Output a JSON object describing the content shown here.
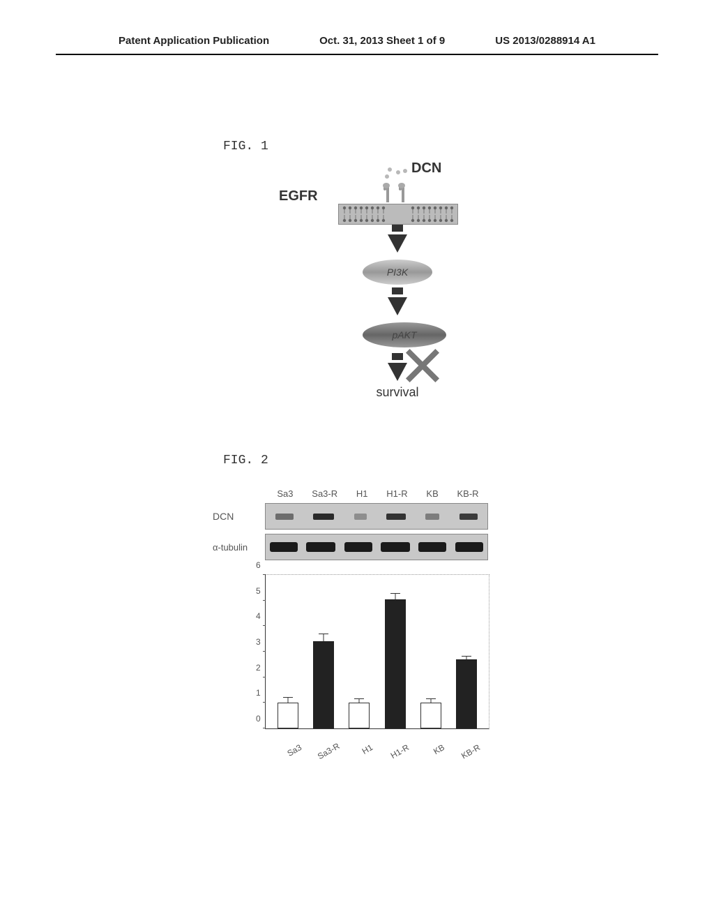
{
  "header": {
    "left": "Patent Application Publication",
    "center": "Oct. 31, 2013  Sheet 1 of 9",
    "right": "US 2013/0288914 A1"
  },
  "fig1": {
    "label": "FIG. 1",
    "dcn": "DCN",
    "egfr": "EGFR",
    "pi3k": "PI3K",
    "pakt": "pAKT",
    "survival": "survival"
  },
  "fig2": {
    "label": "FIG. 2",
    "wb_labels": {
      "dcn": "DCN",
      "tubulin": "α-tubulin"
    },
    "lanes": [
      "Sa3",
      "Sa3-R",
      "H1",
      "H1-R",
      "KB",
      "KB-R"
    ],
    "dcn_band_widths": [
      26,
      30,
      18,
      28,
      20,
      26
    ],
    "dcn_band_opacity": [
      0.55,
      0.95,
      0.35,
      0.9,
      0.45,
      0.85
    ],
    "tub_band_widths": [
      40,
      42,
      40,
      42,
      40,
      40
    ],
    "chart": {
      "ymax": 6,
      "yticks": [
        0,
        1,
        2,
        3,
        4,
        5,
        6
      ],
      "categories": [
        "Sa3",
        "Sa3-R",
        "H1",
        "H1-R",
        "KB",
        "KB-R"
      ],
      "values": [
        1.0,
        3.4,
        1.0,
        5.05,
        1.0,
        2.7
      ],
      "errors": [
        0.25,
        0.3,
        0.2,
        0.25,
        0.2,
        0.15
      ],
      "fills": [
        "white",
        "black",
        "white",
        "black",
        "white",
        "black"
      ],
      "bar_white_color": "#ffffff",
      "bar_black_color": "#222222",
      "border_color": "#333333"
    }
  }
}
